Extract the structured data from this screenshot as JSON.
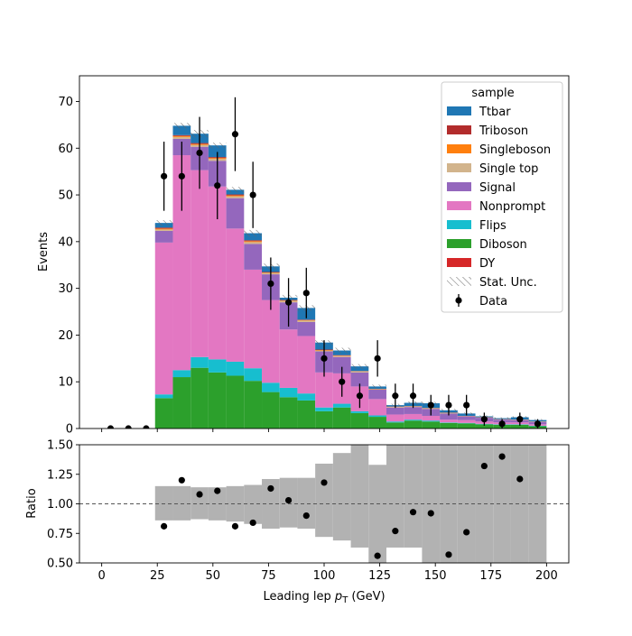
{
  "chart_data": [
    {
      "type": "bar",
      "stacked": true,
      "subtype": "stacked-histogram-with-data-points",
      "xlabel": "Leading lep p_T (GeV)",
      "xlabel_parts": {
        "base": "Leading lep ",
        "symbol": "p",
        "subscript": "T",
        "unit": " (GeV)"
      },
      "ylabel": "Events",
      "xlim": [
        -10,
        210
      ],
      "ylim": [
        0,
        75.5
      ],
      "xticks": [
        "0",
        "25",
        "50",
        "75",
        "100",
        "125",
        "150",
        "175",
        "200"
      ],
      "yticks": [
        "0",
        "10",
        "20",
        "30",
        "40",
        "50",
        "60",
        "70"
      ],
      "xtick_values": [
        0,
        25,
        50,
        75,
        100,
        125,
        150,
        175,
        200
      ],
      "ytick_values": [
        0,
        10,
        20,
        30,
        40,
        50,
        60,
        70
      ],
      "bin_edges": [
        0,
        8,
        16,
        24,
        32,
        40,
        48,
        56,
        64,
        72,
        80,
        88,
        96,
        104,
        112,
        120,
        128,
        136,
        144,
        152,
        160,
        168,
        176,
        184,
        192,
        200
      ],
      "series": [
        {
          "name": "DY",
          "color": "#d62728",
          "values": [
            0,
            0,
            0,
            0,
            0,
            0,
            0,
            0,
            0,
            0,
            0,
            0,
            0,
            0,
            0,
            0,
            0,
            0,
            0,
            0,
            0,
            0,
            0,
            0,
            0
          ]
        },
        {
          "name": "Diboson",
          "color": "#2ca02c",
          "values": [
            0,
            0,
            0,
            6.5,
            11,
            13,
            12,
            11.3,
            10.2,
            7.8,
            6.7,
            6,
            3.7,
            4.5,
            3.3,
            2.5,
            1.3,
            1.7,
            1.5,
            1.2,
            1.1,
            0.9,
            0.8,
            0.8,
            0.5
          ]
        },
        {
          "name": "Flips",
          "color": "#17becf",
          "values": [
            0,
            0,
            0,
            0.8,
            1.5,
            2.3,
            2.8,
            3,
            2.7,
            2,
            2,
            1.5,
            0.8,
            0.8,
            0.4,
            0.3,
            0.2,
            0.2,
            0.2,
            0.1,
            0.1,
            0.1,
            0.1,
            0.1,
            0.1
          ]
        },
        {
          "name": "Nonprompt",
          "color": "#e377c2",
          "values": [
            0,
            0,
            0,
            32.5,
            46,
            40,
            37,
            28.5,
            21.1,
            17.7,
            12.5,
            12.3,
            7.5,
            6.5,
            5.3,
            3.5,
            1.5,
            1.2,
            1,
            0.6,
            0.6,
            0.5,
            0.4,
            0.4,
            0.3
          ]
        },
        {
          "name": "Signal",
          "color": "#9467bd",
          "values": [
            0,
            0,
            0,
            2.5,
            3.5,
            5,
            5.5,
            6.5,
            5.5,
            5.5,
            5.8,
            3,
            4.5,
            3.5,
            3,
            2,
            1.5,
            1.5,
            1.5,
            1.3,
            0.8,
            0.8,
            0.6,
            0.5,
            0.5
          ]
        },
        {
          "name": "Single top",
          "color": "#d2b48c",
          "values": [
            0,
            0,
            0,
            0.3,
            0.4,
            0.4,
            0.4,
            0.4,
            0.4,
            0.3,
            0.3,
            0.3,
            0.2,
            0.2,
            0.2,
            0.1,
            0.1,
            0.1,
            0.1,
            0.1,
            0.05,
            0.05,
            0.05,
            0.05,
            0.05
          ]
        },
        {
          "name": "Singleboson",
          "color": "#ff7f0e",
          "values": [
            0,
            0,
            0,
            0.2,
            0.2,
            0.2,
            0.2,
            0.2,
            0.2,
            0.1,
            0.1,
            0.1,
            0.1,
            0.1,
            0.05,
            0.05,
            0.05,
            0.05,
            0.05,
            0.05,
            0.03,
            0.03,
            0.03,
            0.03,
            0.03
          ]
        },
        {
          "name": "Triboson",
          "color": "#b22c2c",
          "values": [
            0,
            0,
            0,
            0.2,
            0.2,
            0.2,
            0.2,
            0.2,
            0.2,
            0.1,
            0.1,
            0.1,
            0.1,
            0.1,
            0.05,
            0.05,
            0.05,
            0.05,
            0.05,
            0.05,
            0.03,
            0.03,
            0.03,
            0.03,
            0.03
          ]
        },
        {
          "name": "Ttbar",
          "color": "#1f77b4",
          "values": [
            0,
            0,
            0,
            1,
            2,
            2,
            2.5,
            1,
            1.5,
            1.2,
            0.5,
            2.5,
            1.5,
            1,
            1,
            0.5,
            0.3,
            0.7,
            1,
            0.5,
            0.5,
            0.2,
            0.2,
            0.5,
            0.3
          ]
        }
      ],
      "stat_unc": {
        "name": "Stat. Unc.",
        "half_width": [
          0,
          0,
          0,
          0.6,
          0.6,
          0.8,
          0.6,
          0.6,
          0.7,
          0.6,
          0.6,
          0.6,
          0.5,
          0.6,
          0.5,
          0.4,
          0.3,
          0.3,
          0.3,
          0.3,
          0.2,
          0.2,
          0.2,
          0.2,
          0.2
        ]
      },
      "data_points": {
        "name": "Data",
        "color": "#000000",
        "x": [
          4,
          12,
          20,
          28,
          36,
          44,
          52,
          60,
          68,
          76,
          84,
          92,
          100,
          108,
          116,
          124,
          132,
          140,
          148,
          156,
          164,
          172,
          180,
          188,
          196
        ],
        "y": [
          0,
          0,
          0,
          54,
          54,
          59,
          52,
          63,
          50,
          31,
          27,
          29,
          15,
          10,
          7,
          15,
          7,
          7,
          5,
          5,
          5,
          2,
          1,
          2,
          1
        ],
        "yerr": [
          0,
          0,
          0,
          7.4,
          7.4,
          7.7,
          7.2,
          7.9,
          7.1,
          5.6,
          5.2,
          5.4,
          3.9,
          3.2,
          2.6,
          3.9,
          2.6,
          2.6,
          2.2,
          2.2,
          2.2,
          1.4,
          1,
          1.4,
          1
        ]
      },
      "legend": {
        "title": "sample",
        "placement": "top-right",
        "entries": [
          "Ttbar",
          "Triboson",
          "Singleboson",
          "Single top",
          "Signal",
          "Nonprompt",
          "Flips",
          "Diboson",
          "DY",
          "Stat. Unc.",
          "Data"
        ]
      }
    },
    {
      "type": "scatter",
      "subtype": "ratio-panel",
      "xlabel": "Leading lep p_T (GeV)",
      "ylabel": "Ratio",
      "xlim": [
        -10,
        210
      ],
      "ylim": [
        0.5,
        1.5
      ],
      "xticks": [
        "0",
        "25",
        "50",
        "75",
        "100",
        "125",
        "150",
        "175",
        "200"
      ],
      "yticks": [
        "0.50",
        "0.75",
        "1.00",
        "1.25",
        "1.50"
      ],
      "xtick_values": [
        0,
        25,
        50,
        75,
        100,
        125,
        150,
        175,
        200
      ],
      "ytick_values": [
        0.5,
        0.75,
        1.0,
        1.25,
        1.5
      ],
      "reference_line": 1.0,
      "band_color": "#b2b2b2",
      "band_lower": [
        0,
        0,
        0,
        0.86,
        0.86,
        0.87,
        0.86,
        0.85,
        0.83,
        0.79,
        0.8,
        0.79,
        0.72,
        0.69,
        0.63,
        0.5,
        0.63,
        0.63,
        0.5,
        0.5,
        0.5,
        0.5,
        0.5,
        0.5,
        0.5
      ],
      "band_upper": [
        0,
        0,
        0,
        1.15,
        1.15,
        1.14,
        1.14,
        1.15,
        1.16,
        1.21,
        1.22,
        1.22,
        1.34,
        1.43,
        1.5,
        1.33,
        1.5,
        1.5,
        1.5,
        1.5,
        1.5,
        1.5,
        1.5,
        1.5,
        1.5
      ],
      "x": [
        28,
        36,
        44,
        52,
        60,
        68,
        76,
        84,
        92,
        100,
        124,
        132,
        140,
        148,
        156,
        164,
        172,
        180,
        188
      ],
      "y": [
        0.81,
        1.2,
        1.08,
        1.11,
        0.81,
        0.84,
        1.13,
        1.03,
        0.9,
        1.18,
        0.56,
        0.77,
        0.93,
        0.92,
        0.57,
        0.76,
        1.32,
        1.4,
        1.21
      ]
    }
  ]
}
